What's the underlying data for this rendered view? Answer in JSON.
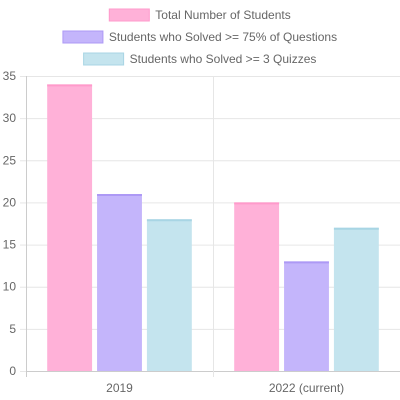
{
  "chart_data": {
    "type": "bar",
    "title": "",
    "xlabel": "",
    "ylabel": "",
    "categories": [
      "2019",
      "2022 (current)"
    ],
    "ylim": [
      0,
      35
    ],
    "yticks": [
      0,
      5,
      10,
      15,
      20,
      25,
      30,
      35
    ],
    "grid": true,
    "legend_position": "top",
    "series": [
      {
        "name": "Total Number of Students",
        "values": [
          34,
          20
        ],
        "color": "#ffb1d8",
        "border_color": "#ff9acb"
      },
      {
        "name": "Students who Solved >= 75% of Questions",
        "values": [
          21,
          13
        ],
        "color": "#c4b5fb",
        "border_color": "#ad99f5"
      },
      {
        "name": "Students who Solved >= 3 Quizzes",
        "values": [
          18,
          17
        ],
        "color": "#c4e4ee",
        "border_color": "#a8d5e4"
      }
    ]
  }
}
